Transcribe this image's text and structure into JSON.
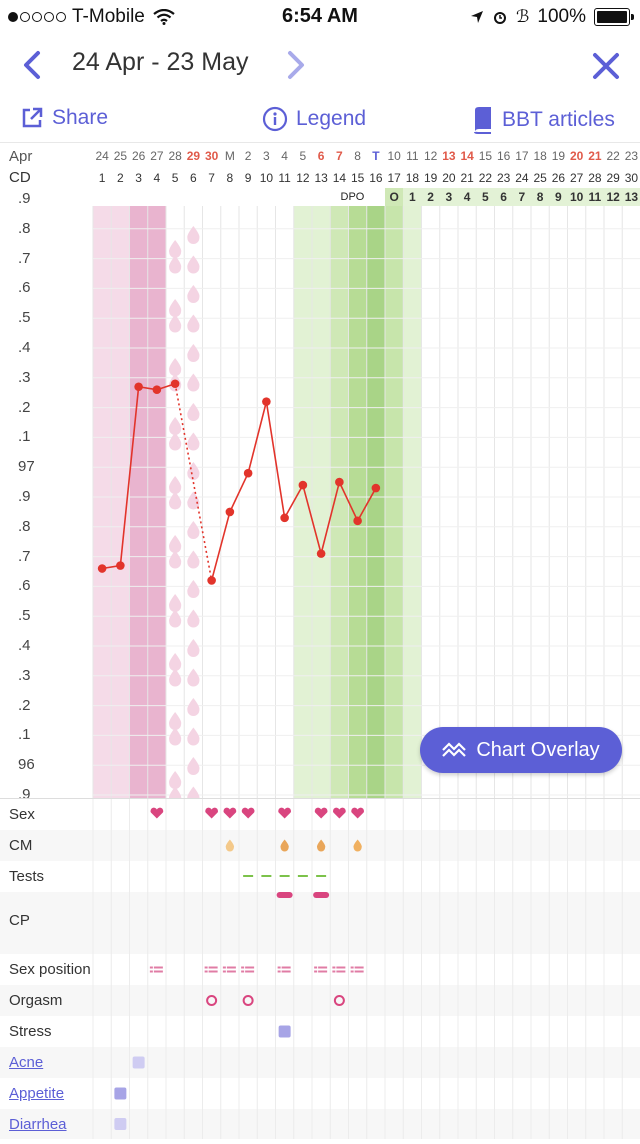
{
  "status_bar": {
    "carrier": "T-Mobile",
    "time": "6:54 AM",
    "battery": "100%"
  },
  "nav": {
    "date_range": "24 Apr - 23 May"
  },
  "toolbar": {
    "share": "Share",
    "legend": "Legend",
    "articles": "BBT articles"
  },
  "header": {
    "month_label": "Apr",
    "cd_label": "CD",
    "dpo_label": "DPO",
    "dates": [
      "24",
      "25",
      "26",
      "27",
      "28",
      "29",
      "30",
      "M",
      "2",
      "3",
      "4",
      "5",
      "6",
      "7",
      "8",
      "T",
      "10",
      "11",
      "12",
      "13",
      "14",
      "15",
      "16",
      "17",
      "18",
      "19",
      "20",
      "21",
      "22",
      "23"
    ],
    "highlight_dates": [
      5,
      6,
      12,
      13,
      19,
      20,
      26,
      27
    ],
    "cd": [
      "1",
      "2",
      "3",
      "4",
      "5",
      "6",
      "7",
      "8",
      "9",
      "10",
      "11",
      "12",
      "13",
      "14",
      "15",
      "16",
      "17",
      "18",
      "19",
      "20",
      "21",
      "22",
      "23",
      "24",
      "25",
      "26",
      "27",
      "28",
      "29",
      "30"
    ],
    "dpo": [
      "O",
      "1",
      "2",
      "3",
      "4",
      "5",
      "6",
      "7",
      "8",
      "9",
      "10",
      "11",
      "12",
      "13"
    ]
  },
  "y_axis_labels": [
    ".9",
    ".8",
    ".7",
    ".6",
    ".5",
    ".4",
    ".3",
    ".2",
    ".1",
    "97",
    ".9",
    ".8",
    ".7",
    ".6",
    ".5",
    ".4",
    ".3",
    ".2",
    ".1",
    "96",
    ".9"
  ],
  "chart_data": {
    "type": "line",
    "ylabel": "",
    "ylim": [
      95.9,
      97.9
    ],
    "x": [
      1,
      2,
      3,
      4,
      5,
      7,
      8,
      9,
      10,
      11,
      12,
      13,
      14,
      15,
      16
    ],
    "values": [
      96.66,
      96.67,
      97.27,
      97.26,
      97.28,
      96.62,
      96.85,
      96.98,
      97.22,
      96.83,
      96.94,
      96.71,
      96.95,
      96.82,
      96.93
    ],
    "dotted_segment": [
      5,
      7
    ]
  },
  "rows": [
    {
      "label": "Sex",
      "link": false
    },
    {
      "label": "CM",
      "link": false
    },
    {
      "label": "Tests",
      "link": false
    },
    {
      "label": "CP",
      "link": false
    },
    {
      "label": "Sex position",
      "link": false
    },
    {
      "label": "Orgasm",
      "link": false
    },
    {
      "label": "Stress",
      "link": false
    },
    {
      "label": "Acne",
      "link": true
    },
    {
      "label": "Appetite",
      "link": true
    },
    {
      "label": "Diarrhea",
      "link": true
    }
  ],
  "overlay_button": {
    "label": "Chart Overlay"
  },
  "colors": {
    "accent": "#5c5fd6",
    "period": "#e9b4cf",
    "fertile": "#a9d487",
    "temp": "#e2342b",
    "today": "#e05a4a"
  }
}
